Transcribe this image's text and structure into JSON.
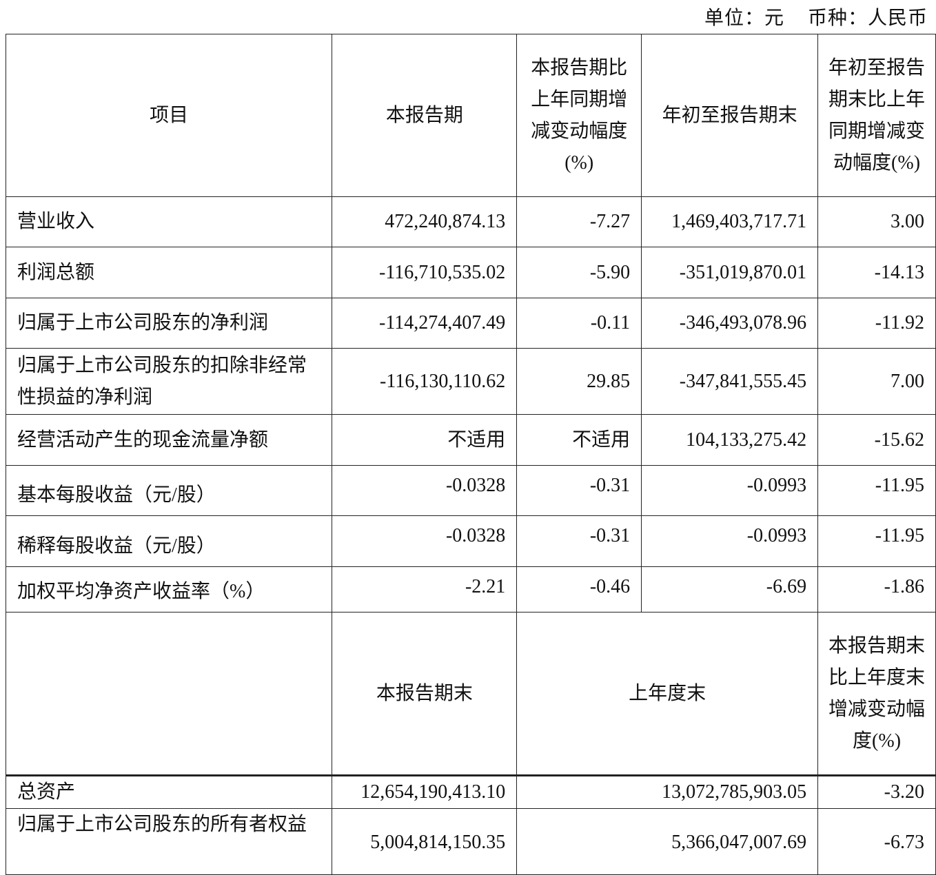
{
  "unit_label": "单位：元",
  "currency_label": "币种：人民币",
  "header": [
    "项目",
    "本报告期",
    "本报告期比上年同期增减变动幅度(%)",
    "年初至报告期末",
    "年初至报告期末比上年同期增减变动幅度(%)"
  ],
  "rows": [
    [
      "营业收入",
      "472,240,874.13",
      "-7.27",
      "1,469,403,717.71",
      "3.00"
    ],
    [
      "利润总额",
      "-116,710,535.02",
      "-5.90",
      "-351,019,870.01",
      "-14.13"
    ],
    [
      "归属于上市公司股东的净利润",
      "-114,274,407.49",
      "-0.11",
      "-346,493,078.96",
      "-11.92"
    ],
    [
      "归属于上市公司股东的扣除非经常性损益的净利润",
      "-116,130,110.62",
      "29.85",
      "-347,841,555.45",
      "7.00"
    ],
    [
      "经营活动产生的现金流量净额",
      "不适用",
      "不适用",
      "104,133,275.42",
      "-15.62"
    ],
    [
      "基本每股收益（元/股）",
      "-0.0328",
      "-0.31",
      "-0.0993",
      "-11.95"
    ],
    [
      "稀释每股收益（元/股）",
      "-0.0328",
      "-0.31",
      "-0.0993",
      "-11.95"
    ],
    [
      "加权平均净资产收益率（%）",
      "-2.21",
      "-0.46",
      "-6.69",
      "-1.86"
    ]
  ],
  "header2": [
    "",
    "本报告期末",
    "上年度末",
    "本报告期末比上年度末增减变动幅度(%)"
  ],
  "rows2": [
    [
      "总资产",
      "12,654,190,413.10",
      "13,072,785,903.05",
      "-3.20"
    ],
    [
      "归属于上市公司股东的所有者权益",
      "5,004,814,150.35",
      "5,366,047,007.69",
      "-6.73"
    ]
  ]
}
